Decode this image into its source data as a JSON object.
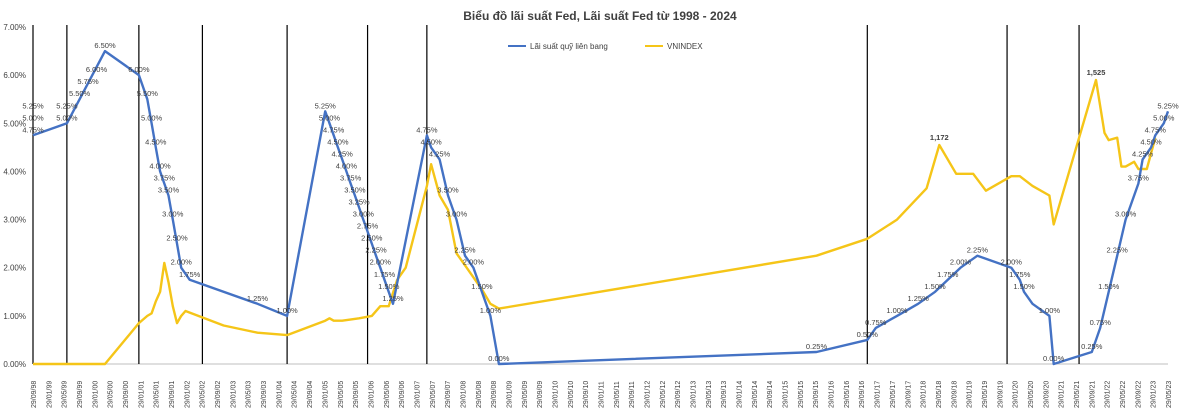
{
  "chart_data": {
    "type": "line",
    "title": "Biểu đồ lãi suất Fed, Lãi suất Fed từ 1998 - 2024",
    "ylim": [
      0,
      7
    ],
    "y_ticks": [
      "0.00%",
      "1.00%",
      "2.00%",
      "3.00%",
      "4.00%",
      "5.00%",
      "6.00%",
      "7.00%"
    ],
    "x_ticks": [
      "29/09/98",
      "29/01/99",
      "29/05/99",
      "29/09/99",
      "29/01/00",
      "29/05/00",
      "29/09/00",
      "29/01/01",
      "29/05/01",
      "29/09/01",
      "29/01/02",
      "29/05/02",
      "29/09/02",
      "29/01/03",
      "29/05/03",
      "29/09/03",
      "29/01/04",
      "29/05/04",
      "29/09/04",
      "29/01/05",
      "29/05/05",
      "29/09/05",
      "29/01/06",
      "29/05/06",
      "29/09/06",
      "29/01/07",
      "29/05/07",
      "29/09/07",
      "29/01/08",
      "29/05/08",
      "29/09/08",
      "29/01/09",
      "29/05/09",
      "29/09/09",
      "29/01/10",
      "29/05/10",
      "29/09/10",
      "29/01/11",
      "29/05/11",
      "29/09/11",
      "29/01/12",
      "29/05/12",
      "29/09/12",
      "29/01/13",
      "29/05/13",
      "29/09/13",
      "29/01/14",
      "29/05/14",
      "29/09/14",
      "29/01/15",
      "29/05/15",
      "29/09/15",
      "29/01/16",
      "29/05/16",
      "29/09/16",
      "29/01/17",
      "29/05/17",
      "29/09/17",
      "29/01/18",
      "29/05/18",
      "29/09/18",
      "29/01/19",
      "29/05/19",
      "29/09/19",
      "29/01/20",
      "29/05/20",
      "29/09/20",
      "29/01/21",
      "29/05/21",
      "29/09/21",
      "29/01/22",
      "29/05/22",
      "29/09/22",
      "29/01/23",
      "29/05/23"
    ],
    "legend": {
      "placement": "top-center"
    },
    "grid": false,
    "vertical_markers": [
      0,
      8,
      25,
      40,
      60,
      79,
      93,
      197,
      230,
      247
    ],
    "series": [
      {
        "name": "Lãi suất quỹ liên bang",
        "color": "#4472C4",
        "points": [
          [
            0,
            4.75
          ],
          [
            8,
            5.0
          ],
          [
            17,
            6.5
          ],
          [
            25,
            6.0
          ],
          [
            27,
            5.5
          ],
          [
            28,
            5.0
          ],
          [
            29,
            4.5
          ],
          [
            30,
            4.0
          ],
          [
            31,
            3.75
          ],
          [
            32,
            3.5
          ],
          [
            33,
            3.0
          ],
          [
            34,
            2.5
          ],
          [
            35,
            2.0
          ],
          [
            37,
            1.75
          ],
          [
            53,
            1.25
          ],
          [
            60,
            1.0
          ],
          [
            69,
            5.25
          ],
          [
            70,
            5.0
          ],
          [
            71,
            4.75
          ],
          [
            72,
            4.5
          ],
          [
            73,
            4.25
          ],
          [
            74,
            4.0
          ],
          [
            75,
            3.75
          ],
          [
            76,
            3.5
          ],
          [
            77,
            3.25
          ],
          [
            78,
            3.0
          ],
          [
            79,
            2.75
          ],
          [
            80,
            2.5
          ],
          [
            81,
            2.25
          ],
          [
            82,
            2.0
          ],
          [
            83,
            1.75
          ],
          [
            84,
            1.5
          ],
          [
            85,
            1.25
          ],
          [
            93,
            4.75
          ],
          [
            94,
            4.5
          ],
          [
            96,
            4.25
          ],
          [
            98,
            3.5
          ],
          [
            100,
            3.0
          ],
          [
            102,
            2.25
          ],
          [
            104,
            2.0
          ],
          [
            106,
            1.5
          ],
          [
            108,
            1.0
          ],
          [
            110,
            0.0
          ],
          [
            185,
            0.25
          ],
          [
            197,
            0.5
          ],
          [
            199,
            0.75
          ],
          [
            204,
            1.0
          ],
          [
            209,
            1.25
          ],
          [
            213,
            1.5
          ],
          [
            216,
            1.75
          ],
          [
            219,
            2.0
          ],
          [
            223,
            2.25
          ],
          [
            231,
            2.0
          ],
          [
            233,
            1.75
          ],
          [
            234,
            1.5
          ],
          [
            236,
            1.25
          ],
          [
            240,
            1.0
          ],
          [
            241,
            0.0
          ],
          [
            250,
            0.25
          ],
          [
            252,
            0.75
          ],
          [
            254,
            1.5
          ],
          [
            256,
            2.25
          ],
          [
            258,
            3.0
          ],
          [
            261,
            3.75
          ],
          [
            262,
            4.25
          ],
          [
            264,
            4.5
          ],
          [
            265,
            4.75
          ],
          [
            267,
            5.0
          ],
          [
            268,
            5.25
          ]
        ],
        "labels": [
          [
            0,
            4.75,
            "4.75%"
          ],
          [
            8,
            5.0,
            "5.00%"
          ],
          [
            17,
            6.5,
            "6.50%"
          ],
          [
            25,
            6.0,
            "6.00%"
          ],
          [
            27,
            5.5,
            "5.50%"
          ],
          [
            28,
            5.0,
            "5.00%"
          ],
          [
            29,
            4.5,
            "4.50%"
          ],
          [
            30,
            4.0,
            "4.00%"
          ],
          [
            31,
            3.75,
            "3.75%"
          ],
          [
            32,
            3.5,
            "3.50%"
          ],
          [
            33,
            3.0,
            "3.00%"
          ],
          [
            34,
            2.5,
            "2.50%"
          ],
          [
            35,
            2.0,
            "2.00%"
          ],
          [
            37,
            1.75,
            "1.75%"
          ],
          [
            53,
            1.25,
            "1.25%"
          ],
          [
            60,
            1.0,
            "1.00%"
          ],
          [
            69,
            5.25,
            "5.25%"
          ],
          [
            70,
            5.0,
            "5.00%"
          ],
          [
            71,
            4.75,
            "4.75%"
          ],
          [
            72,
            4.5,
            "4.50%"
          ],
          [
            73,
            4.25,
            "4.25%"
          ],
          [
            74,
            4.0,
            "4.00%"
          ],
          [
            75,
            3.75,
            "3.75%"
          ],
          [
            76,
            3.5,
            "3.50%"
          ],
          [
            77,
            3.25,
            "3.25%"
          ],
          [
            78,
            3.0,
            "3.00%"
          ],
          [
            79,
            2.75,
            "2.75%"
          ],
          [
            80,
            2.5,
            "2.50%"
          ],
          [
            81,
            2.25,
            "2.25%"
          ],
          [
            82,
            2.0,
            "2.00%"
          ],
          [
            83,
            1.75,
            "1.75%"
          ],
          [
            84,
            1.5,
            "1.50%"
          ],
          [
            85,
            1.25,
            "1.25%"
          ],
          [
            93,
            4.75,
            "4.75%"
          ],
          [
            94,
            4.5,
            "4.50%"
          ],
          [
            96,
            4.25,
            "4.25%"
          ],
          [
            98,
            3.5,
            "3.50%"
          ],
          [
            100,
            3.0,
            "3.00%"
          ],
          [
            102,
            2.25,
            "2.25%"
          ],
          [
            104,
            2.0,
            "2.00%"
          ],
          [
            106,
            1.5,
            "1.50%"
          ],
          [
            108,
            1.0,
            "1.00%"
          ],
          [
            110,
            0.0,
            "0.00%"
          ],
          [
            185,
            0.25,
            "0.25%"
          ],
          [
            197,
            0.5,
            "0.50%"
          ],
          [
            199,
            0.75,
            "0.75%"
          ],
          [
            204,
            1.0,
            "1.00%"
          ],
          [
            209,
            1.25,
            "1.25%"
          ],
          [
            213,
            1.5,
            "1.50%"
          ],
          [
            216,
            1.75,
            "1.75%"
          ],
          [
            219,
            2.0,
            "2.00%"
          ],
          [
            223,
            2.25,
            "2.25%"
          ],
          [
            231,
            2.0,
            "2.00%"
          ],
          [
            233,
            1.75,
            "1.75%"
          ],
          [
            234,
            1.5,
            "1.50%"
          ],
          [
            240,
            1.0,
            "1.00%"
          ],
          [
            241,
            0.0,
            "0.00%"
          ],
          [
            250,
            0.25,
            "0.25%"
          ],
          [
            252,
            0.75,
            "0.75%"
          ],
          [
            254,
            1.5,
            "1.50%"
          ],
          [
            256,
            2.25,
            "2.25%"
          ],
          [
            258,
            3.0,
            "3.00%"
          ],
          [
            261,
            3.75,
            "3.75%"
          ],
          [
            262,
            4.25,
            "4.25%"
          ],
          [
            264,
            4.5,
            "4.50%"
          ],
          [
            265,
            4.75,
            "4.75%"
          ],
          [
            267,
            5.0,
            "5.00%"
          ],
          [
            268,
            5.25,
            "5.25%"
          ]
        ],
        "extra_labels": [
          [
            0,
            5.0,
            "5.00%"
          ],
          [
            0,
            5.25,
            "5.25%"
          ],
          [
            8,
            5.25,
            "5.25%"
          ],
          [
            11,
            5.5,
            "5.50%"
          ],
          [
            13,
            5.75,
            "5.75%"
          ],
          [
            15,
            6.0,
            "6.00%"
          ]
        ]
      },
      {
        "name": "VNINDEX",
        "color": "#F5C518",
        "points": [
          [
            0,
            0.0
          ],
          [
            17,
            0.0
          ],
          [
            25,
            0.85
          ],
          [
            27,
            1.0
          ],
          [
            28,
            1.05
          ],
          [
            29,
            1.3
          ],
          [
            30,
            1.5
          ],
          [
            31,
            2.1
          ],
          [
            32,
            1.7
          ],
          [
            33,
            1.2
          ],
          [
            34,
            0.85
          ],
          [
            35,
            1.0
          ],
          [
            36,
            1.1
          ],
          [
            45,
            0.8
          ],
          [
            53,
            0.65
          ],
          [
            60,
            0.6
          ],
          [
            69,
            0.9
          ],
          [
            70,
            0.95
          ],
          [
            71,
            0.9
          ],
          [
            73,
            0.9
          ],
          [
            77,
            0.95
          ],
          [
            80,
            1.0
          ],
          [
            82,
            1.2
          ],
          [
            84,
            1.2
          ],
          [
            86,
            1.75
          ],
          [
            88,
            2.0
          ],
          [
            93,
            3.7
          ],
          [
            94,
            4.15
          ],
          [
            96,
            3.5
          ],
          [
            98,
            3.2
          ],
          [
            100,
            2.3
          ],
          [
            102,
            2.05
          ],
          [
            104,
            1.8
          ],
          [
            106,
            1.55
          ],
          [
            108,
            1.25
          ],
          [
            110,
            1.15
          ],
          [
            185,
            2.25
          ],
          [
            197,
            2.6
          ],
          [
            204,
            3.0
          ],
          [
            211,
            3.65
          ],
          [
            214,
            4.55
          ],
          [
            218,
            3.95
          ],
          [
            222,
            3.95
          ],
          [
            225,
            3.6
          ],
          [
            231,
            3.9
          ],
          [
            233,
            3.9
          ],
          [
            236,
            3.7
          ],
          [
            240,
            3.5
          ],
          [
            241,
            2.9
          ],
          [
            251,
            5.9
          ],
          [
            253,
            4.8
          ],
          [
            254,
            4.65
          ],
          [
            256,
            4.7
          ],
          [
            257,
            4.1
          ],
          [
            258,
            4.1
          ],
          [
            260,
            4.2
          ],
          [
            261,
            4.05
          ],
          [
            263,
            4.05
          ],
          [
            265,
            4.7
          ]
        ],
        "labels": [
          [
            214,
            4.55,
            "1,172"
          ],
          [
            251,
            5.9,
            "1,525"
          ]
        ]
      }
    ]
  }
}
